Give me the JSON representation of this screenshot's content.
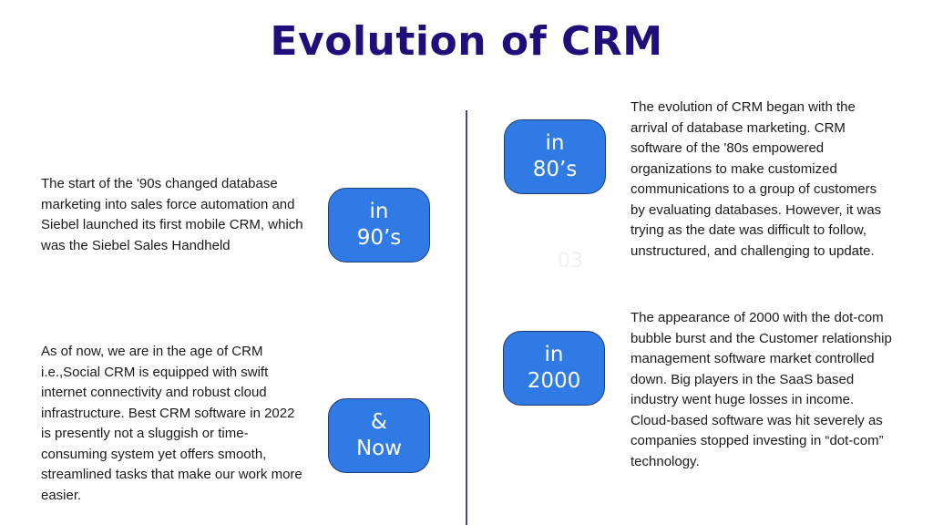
{
  "title": "Evolution of CRM",
  "accent_color": "#2f7ae5",
  "title_color": "#1f0f7a",
  "eras": {
    "e80s": {
      "label": "in\n80’s",
      "text": "The evolution of CRM began with the arrival of database marketing. CRM software of the '80s empowered organizations to make customized communications to a group of customers by evaluating databases. However, it was trying as the date was difficult to follow, unstructured, and challenging to update."
    },
    "e90s": {
      "label": "in\n90’s",
      "text": "The start of the '90s changed database marketing into sales force automation and Siebel launched its first mobile CRM, which was the Siebel Sales Handheld"
    },
    "e2000": {
      "label": "in\n2000",
      "text": "The appearance of 2000 with the dot-com bubble burst and the Customer relationship management software market controlled down. Big players in the SaaS based industry went huge losses in income. Cloud-based software was hit severely as companies stopped investing in “dot-com” technology."
    },
    "now": {
      "label": "&\nNow",
      "text": "As of now, we are in the age of CRM i.e.,Social CRM is equipped with swift internet connectivity and robust cloud infrastructure. Best CRM software in 2022 is presently not a sluggish or time-consuming system yet offers smooth, streamlined tasks that make our work more easier."
    }
  },
  "page_number": "03"
}
